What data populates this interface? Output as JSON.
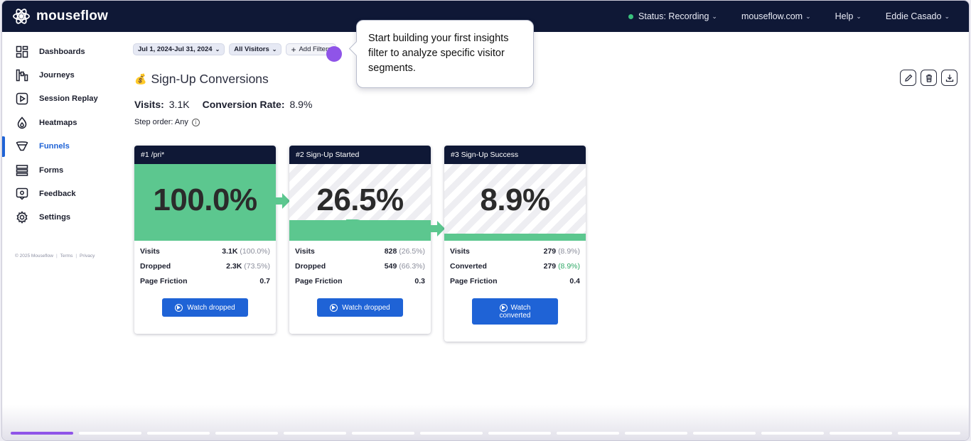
{
  "app": {
    "name": "mouseflow"
  },
  "topnav": {
    "status": "Status: Recording",
    "site": "mouseflow.com",
    "help": "Help",
    "user": "Eddie Casado"
  },
  "sidebar": {
    "items": [
      {
        "label": "Dashboards",
        "icon": "dashboard-icon"
      },
      {
        "label": "Journeys",
        "icon": "journeys-icon"
      },
      {
        "label": "Session Replay",
        "icon": "play-icon"
      },
      {
        "label": "Heatmaps",
        "icon": "flame-icon"
      },
      {
        "label": "Funnels",
        "icon": "funnel-icon",
        "active": true
      },
      {
        "label": "Forms",
        "icon": "forms-icon"
      },
      {
        "label": "Feedback",
        "icon": "feedback-icon"
      },
      {
        "label": "Settings",
        "icon": "gear-icon"
      }
    ],
    "footer": {
      "copyright": "© 2025 Mouseflow",
      "terms": "Terms",
      "privacy": "Privacy"
    }
  },
  "filters": {
    "date_range": "Jul 1, 2024-Jul 31, 2024",
    "segment": "All Visitors",
    "add": "Add Filters"
  },
  "tooltip": {
    "text": "Start building your first insights filter to analyze specific visitor segments."
  },
  "funnel": {
    "title": "Sign-Up Conversions",
    "visits_label": "Visits:",
    "visits_value": "3.1K",
    "conversion_label": "Conversion Rate:",
    "conversion_value": "8.9%",
    "step_order": "Step order: Any",
    "steps": [
      {
        "header": "#1  /pri*",
        "percent": "100.0%",
        "fill": 1.0,
        "rows": [
          {
            "k": "Visits",
            "v": "3.1K",
            "sub": "(100.0%)"
          },
          {
            "k": "Dropped",
            "v": "2.3K",
            "sub": "(73.5%)"
          },
          {
            "k": "Page Friction",
            "v": "0.7",
            "sub": ""
          }
        ],
        "button": "Watch dropped"
      },
      {
        "header": "#2  Sign-Up Started",
        "percent": "26.5%",
        "fill": 0.265,
        "rows": [
          {
            "k": "Visits",
            "v": "828",
            "sub": "(26.5%)"
          },
          {
            "k": "Dropped",
            "v": "549",
            "sub": "(66.3%)"
          },
          {
            "k": "Page Friction",
            "v": "0.3",
            "sub": ""
          }
        ],
        "button": "Watch dropped"
      },
      {
        "header": "#3  Sign-Up Success",
        "percent": "8.9%",
        "fill": 0.089,
        "rows": [
          {
            "k": "Visits",
            "v": "279",
            "sub": "(8.9%)"
          },
          {
            "k": "Converted",
            "v": "279",
            "sub": "(8.9%)"
          },
          {
            "k": "Page Friction",
            "v": "0.4",
            "sub": ""
          }
        ],
        "button_line1": "Watch",
        "button_line2": "converted"
      }
    ]
  },
  "colors": {
    "navy": "#0f1836",
    "green": "#5cc78f",
    "blue": "#1f63d6",
    "purple": "#8f54e8"
  },
  "progress": {
    "current": 1,
    "total": 14
  }
}
